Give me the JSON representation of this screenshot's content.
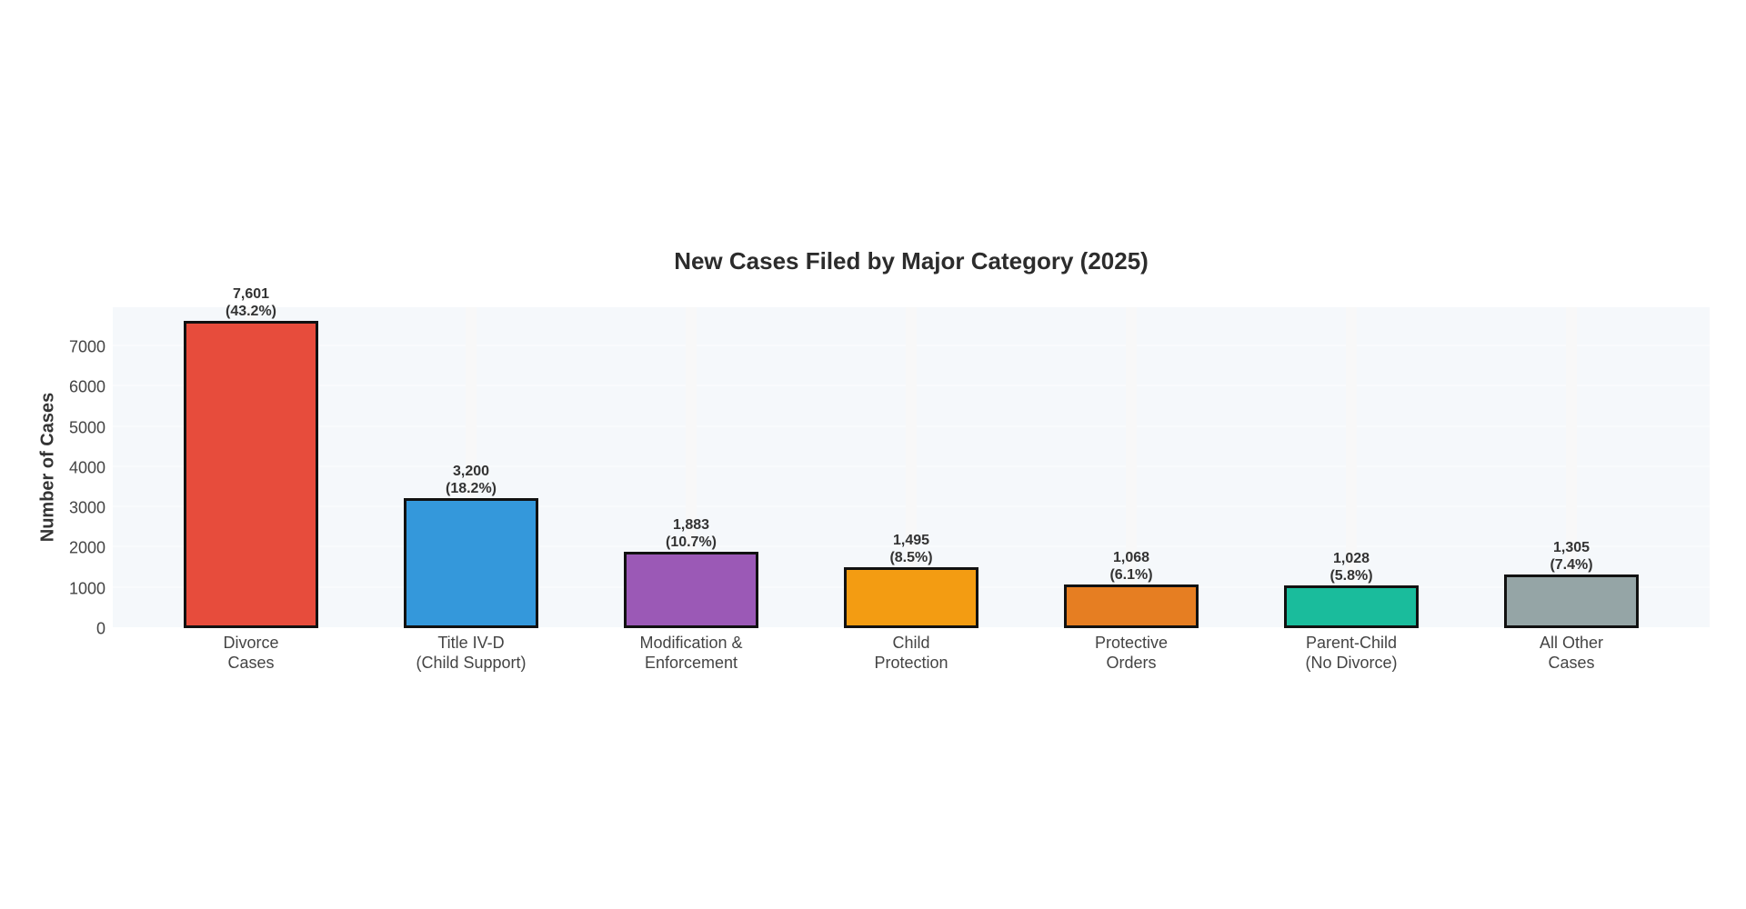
{
  "chart_data": {
    "type": "bar",
    "title": "New Cases Filed by Major Category (2025)",
    "xlabel": "",
    "ylabel": "Number of Cases",
    "ylim": [
      0,
      7950
    ],
    "yticks": [
      0,
      1000,
      2000,
      3000,
      4000,
      5000,
      6000,
      7000
    ],
    "grid": true,
    "legend": null,
    "categories": [
      "Divorce Cases",
      "Title IV-D (Child Support)",
      "Modification & Enforcement",
      "Child Protection",
      "Protective Orders",
      "Parent-Child (No Divorce)",
      "All Other Cases"
    ],
    "category_lines": [
      [
        "Divorce",
        "Cases"
      ],
      [
        "Title IV-D",
        "(Child Support)"
      ],
      [
        "Modification &",
        "Enforcement"
      ],
      [
        "Child",
        "Protection"
      ],
      [
        "Protective",
        "Orders"
      ],
      [
        "Parent-Child",
        "(No Divorce)"
      ],
      [
        "All Other",
        "Cases"
      ]
    ],
    "values": [
      7601,
      3200,
      1883,
      1495,
      1068,
      1028,
      1305
    ],
    "value_labels": [
      "7,601",
      "3,200",
      "1,883",
      "1,495",
      "1,068",
      "1,028",
      "1,305"
    ],
    "percent_labels": [
      "(43.2%)",
      "(18.2%)",
      "(10.7%)",
      "(8.5%)",
      "(6.1%)",
      "(5.8%)",
      "(7.4%)"
    ],
    "percentages": [
      43.2,
      18.2,
      10.7,
      8.5,
      6.1,
      5.8,
      7.4
    ],
    "colors": [
      "#e74c3c",
      "#3498db",
      "#9b59b6",
      "#f39c12",
      "#e67e22",
      "#1abc9c",
      "#95a5a6"
    ]
  }
}
